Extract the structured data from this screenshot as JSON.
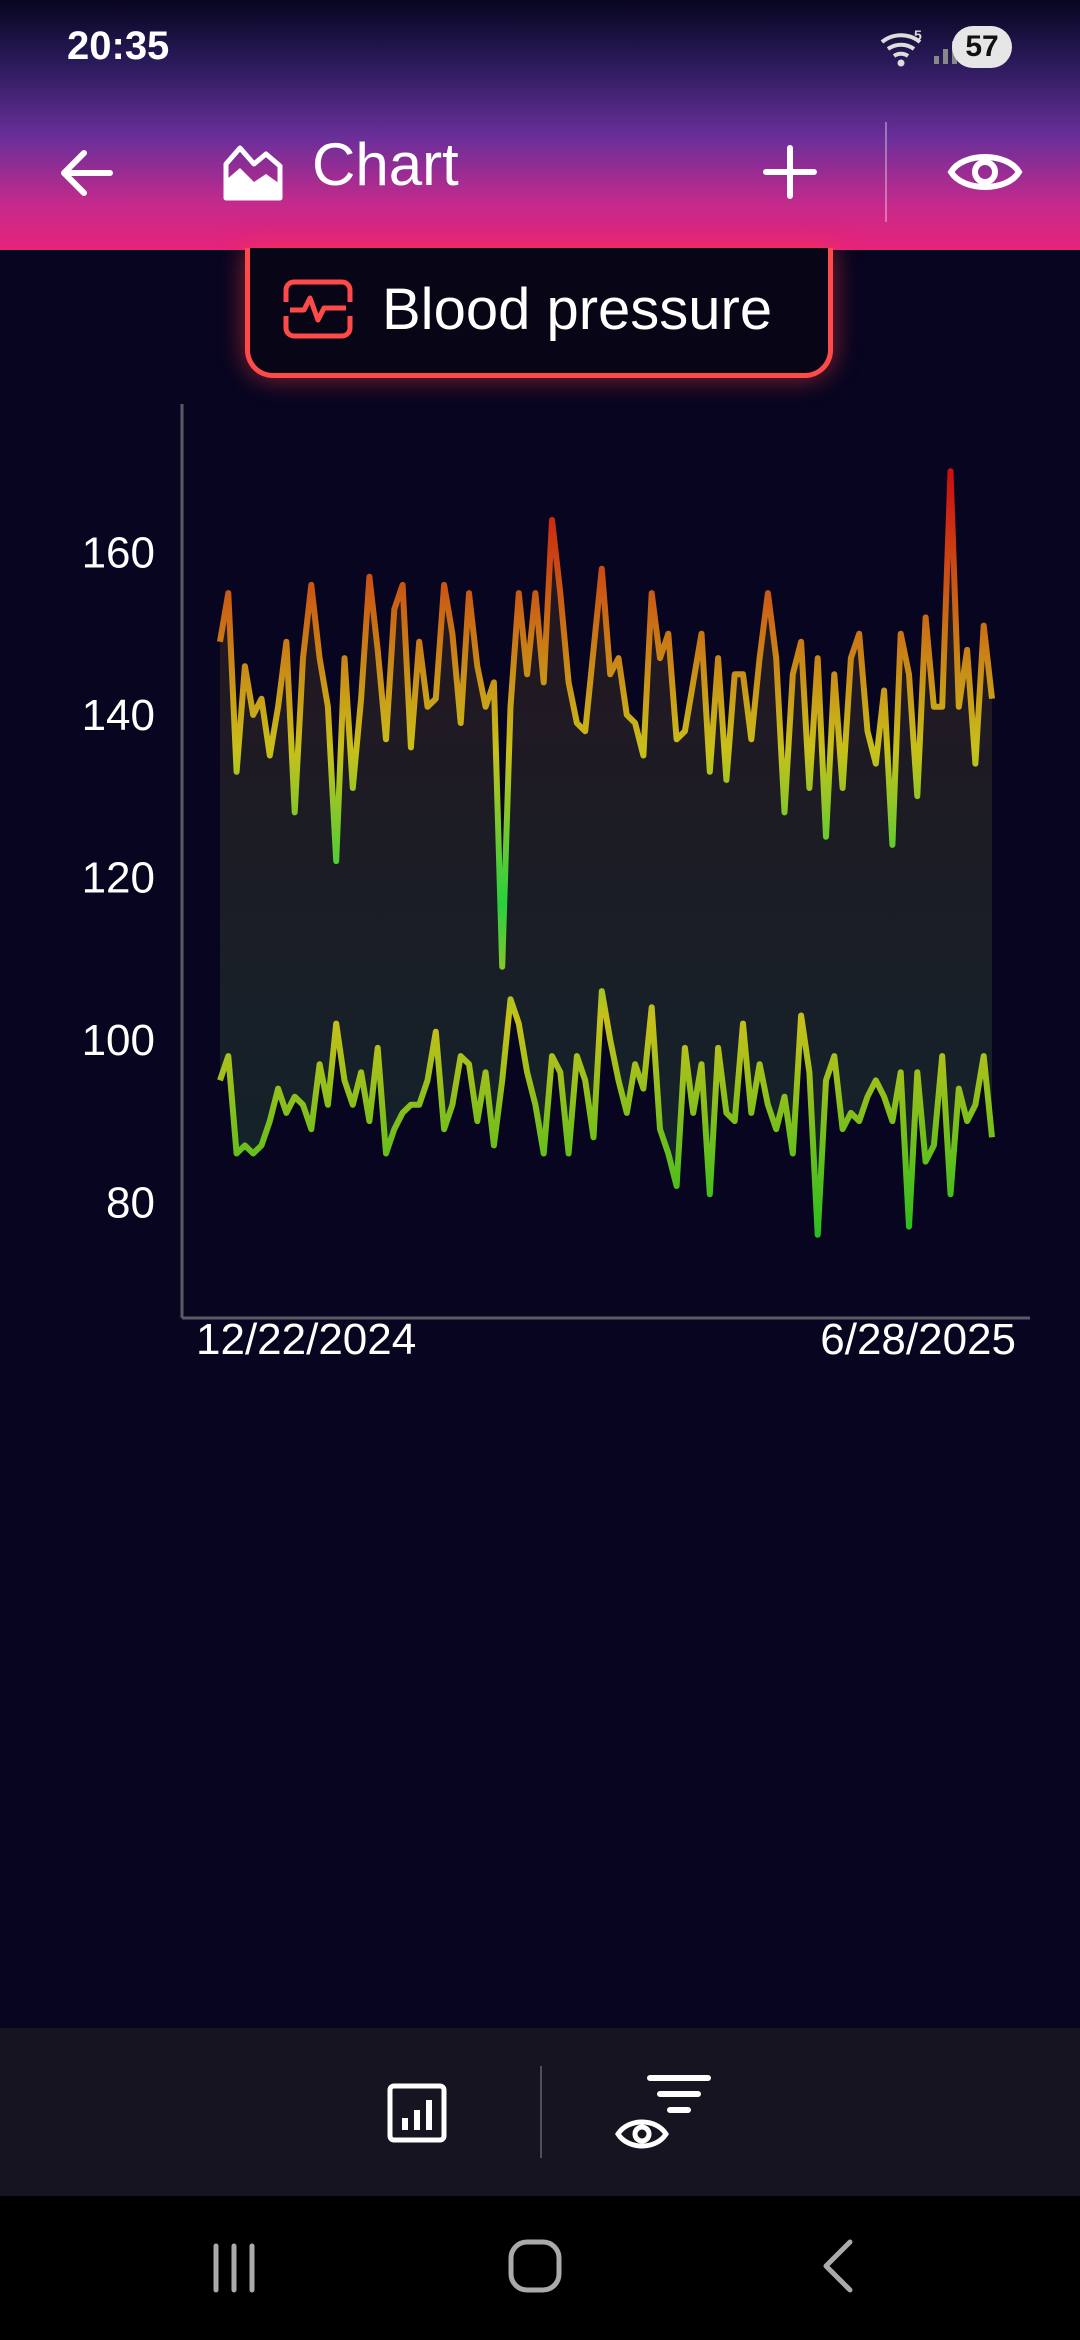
{
  "status": {
    "time": "20:35",
    "battery": "57",
    "wifi_badge": "5"
  },
  "appbar": {
    "title": "Chart",
    "icons": {
      "back": "arrow-left-icon",
      "title": "area-chart-icon",
      "add": "plus-icon",
      "visibility": "eye-icon"
    }
  },
  "chip": {
    "label": "Blood pressure",
    "icon": "heart-monitor-icon",
    "color": "#ff4a4a"
  },
  "chart_data": {
    "type": "line",
    "title": "",
    "xlabel": "",
    "ylabel": "",
    "ylim": [
      66,
      180
    ],
    "y_ticks": [
      160,
      140,
      120,
      100,
      80
    ],
    "x_tick_labels": [
      "12/22/2024",
      "6/28/2025"
    ],
    "grid": false,
    "colors": {
      "high": "#cc1111",
      "mid": "#c8c01a",
      "low": "#1fbe1f"
    },
    "series": [
      {
        "values": [
          149,
          155,
          133,
          146,
          140,
          142,
          135,
          141,
          149,
          128,
          147,
          156,
          147,
          141,
          122,
          147,
          131,
          142,
          157,
          148,
          137,
          153,
          156,
          136,
          149,
          141,
          142,
          156,
          150,
          139,
          155,
          146,
          141,
          144,
          109,
          141,
          155,
          145,
          155,
          144,
          164,
          155,
          144,
          139,
          138,
          148,
          158,
          145,
          147,
          140,
          139,
          135,
          155,
          147,
          150,
          137,
          138,
          144,
          150,
          133,
          147,
          132,
          145,
          145,
          137,
          147,
          155,
          147,
          128,
          145,
          149,
          131,
          147,
          125,
          145,
          131,
          147,
          150,
          138,
          134,
          143,
          124,
          150,
          145,
          130,
          152,
          141,
          141,
          170,
          141,
          148,
          134,
          151,
          142
        ]
      },
      {
        "values": [
          95,
          98,
          86,
          87,
          86,
          87,
          90,
          94,
          91,
          93,
          92,
          89,
          97,
          92,
          102,
          95,
          92,
          96,
          90,
          99,
          86,
          89,
          91,
          92,
          92,
          95,
          101,
          89,
          92,
          98,
          97,
          90,
          96,
          87,
          95,
          105,
          102,
          96,
          92,
          86,
          98,
          96,
          86,
          98,
          95,
          88,
          106,
          100,
          95,
          91,
          97,
          94,
          104,
          89,
          86,
          82,
          99,
          91,
          97,
          81,
          99,
          91,
          90,
          102,
          91,
          97,
          92,
          89,
          93,
          86,
          103,
          96,
          76,
          95,
          98,
          89,
          91,
          90,
          93,
          95,
          93,
          90,
          96,
          77,
          96,
          85,
          87,
          98,
          81,
          94,
          90,
          92,
          98,
          88
        ]
      }
    ]
  },
  "bottom_bar": {
    "icons": {
      "chart": "bar-chart-icon",
      "filter": "eye-filter-icon"
    }
  },
  "navbar": {
    "icons": {
      "recent": "recent-apps-icon",
      "home": "home-icon",
      "back": "back-chevron-icon"
    }
  }
}
